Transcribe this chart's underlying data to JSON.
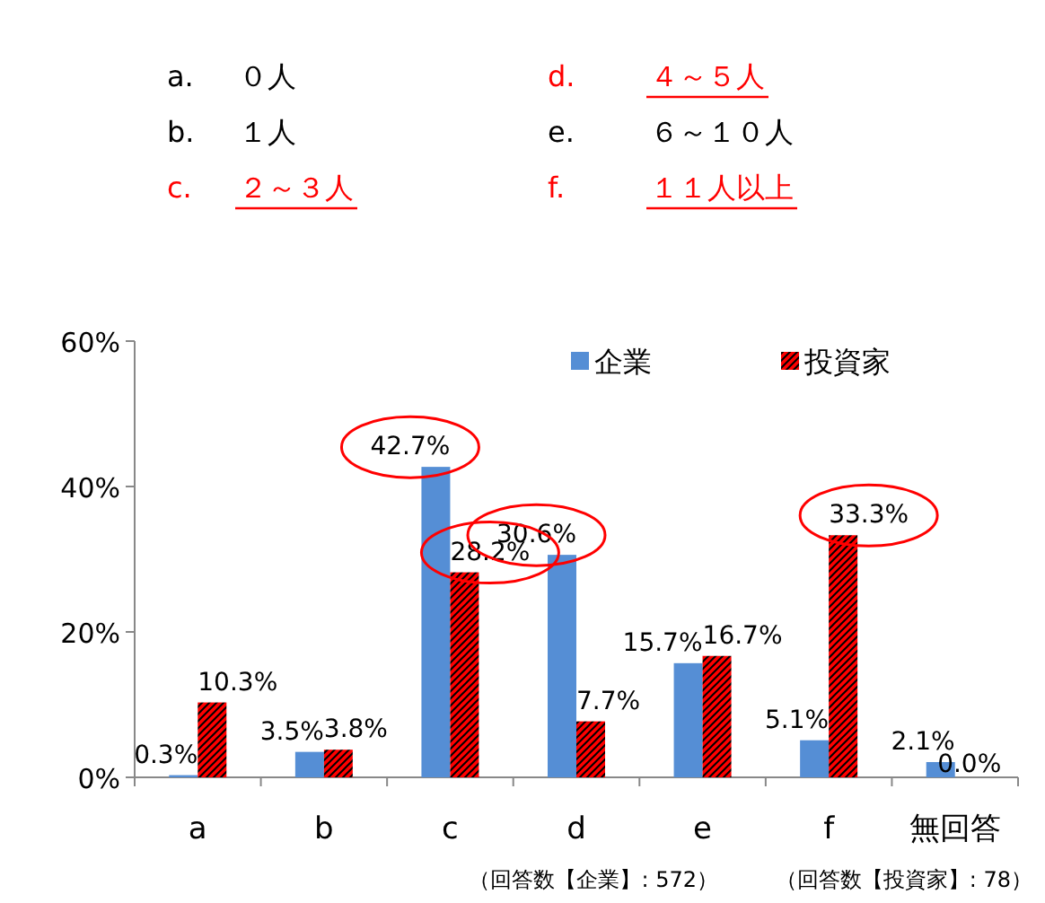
{
  "chart_data": {
    "type": "bar",
    "categories": [
      "a",
      "b",
      "c",
      "d",
      "e",
      "f",
      "無回答"
    ],
    "series": [
      {
        "name": "企業",
        "color": "#558ed5",
        "values": [
          0.3,
          3.5,
          42.7,
          30.6,
          15.7,
          5.1,
          2.1
        ],
        "value_labels": [
          "0.3%",
          "3.5%",
          "42.7%",
          "30.6%",
          "15.7%",
          "5.1%",
          "2.1%"
        ]
      },
      {
        "name": "投資家",
        "color": "#ff0000",
        "values": [
          10.3,
          3.8,
          28.2,
          7.7,
          16.7,
          33.3,
          0.0
        ],
        "value_labels": [
          "10.3%",
          "3.8%",
          "28.2%",
          "7.7%",
          "16.7%",
          "33.3%",
          "0.0%"
        ]
      }
    ],
    "ylim": [
      0,
      60
    ],
    "yticks": [
      {
        "value": 0,
        "label": "0%"
      },
      {
        "value": 20,
        "label": "20%"
      },
      {
        "value": 40,
        "label": "40%"
      },
      {
        "value": 60,
        "label": "60%"
      }
    ],
    "legend": "top right",
    "data_labels": true,
    "annotations": [
      "a.",
      "０人",
      "b.",
      "１人",
      "c.",
      "２～３人",
      "d.",
      "４～５人",
      "e.",
      "６～１０人",
      "f.",
      "１１人以上",
      "（回答数【企業】: 572）",
      "（回答数【投資家】: 78）"
    ]
  }
}
